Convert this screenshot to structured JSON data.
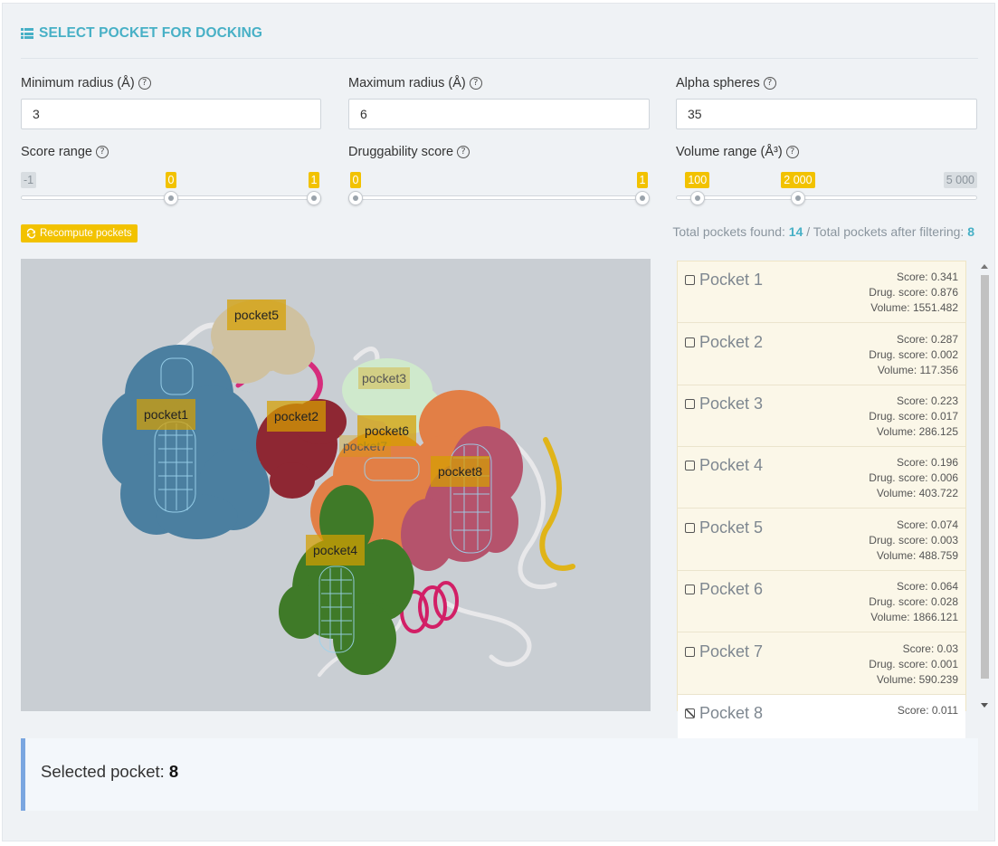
{
  "title": "SELECT POCKET FOR DOCKING",
  "fields": {
    "min_radius": {
      "label": "Minimum radius (Å)",
      "value": "3"
    },
    "max_radius": {
      "label": "Maximum radius (Å)",
      "value": "6"
    },
    "alpha_spheres": {
      "label": "Alpha spheres",
      "value": "35"
    }
  },
  "sliders": {
    "score": {
      "label": "Score range",
      "min": "-1",
      "max": "1",
      "low": "0",
      "high": "1",
      "low_frac": 0.5,
      "high_frac": 1.0
    },
    "drug": {
      "label": "Druggability score",
      "min": "0",
      "max": "1",
      "low": "0",
      "high": "1",
      "low_frac": 0.0,
      "high_frac": 1.0
    },
    "volume": {
      "label": "Volume range (Å³)",
      "min": "100",
      "max": "5 000",
      "low": "100",
      "high": "2 000",
      "low_frac": 0.05,
      "high_frac": 0.4
    }
  },
  "help_glyph": "?",
  "recompute_label": "Recompute pockets",
  "totals": {
    "found_label": "Total pockets found:",
    "found": "14",
    "sep": "/",
    "filtered_label": "Total pockets after filtering:",
    "filtered": "8"
  },
  "viewer_labels": [
    "pocket1",
    "pocket2",
    "pocket3",
    "pocket4",
    "pocket5",
    "pocket6",
    "pocket7",
    "pocket8"
  ],
  "pockets": [
    {
      "name": "Pocket 1",
      "score": "Score: 0.341",
      "drug": "Drug. score: 0.876",
      "volume": "Volume: 1551.482"
    },
    {
      "name": "Pocket 2",
      "score": "Score: 0.287",
      "drug": "Drug. score: 0.002",
      "volume": "Volume: 117.356"
    },
    {
      "name": "Pocket 3",
      "score": "Score: 0.223",
      "drug": "Drug. score: 0.017",
      "volume": "Volume: 286.125"
    },
    {
      "name": "Pocket 4",
      "score": "Score: 0.196",
      "drug": "Drug. score: 0.006",
      "volume": "Volume: 403.722"
    },
    {
      "name": "Pocket 5",
      "score": "Score: 0.074",
      "drug": "Drug. score: 0.003",
      "volume": "Volume: 488.759"
    },
    {
      "name": "Pocket 6",
      "score": "Score: 0.064",
      "drug": "Drug. score: 0.028",
      "volume": "Volume: 1866.121"
    },
    {
      "name": "Pocket 7",
      "score": "Score: 0.03",
      "drug": "Drug. score: 0.001",
      "volume": "Volume: 590.239"
    },
    {
      "name": "Pocket 8",
      "score": "Score: 0.011",
      "drug": "",
      "volume": ""
    }
  ],
  "selected": {
    "label": "Selected pocket:",
    "value": "8"
  },
  "colors": {
    "accent": "#47b0c6",
    "yellow": "#f2c200",
    "selected_border": "#7aa6e0"
  }
}
